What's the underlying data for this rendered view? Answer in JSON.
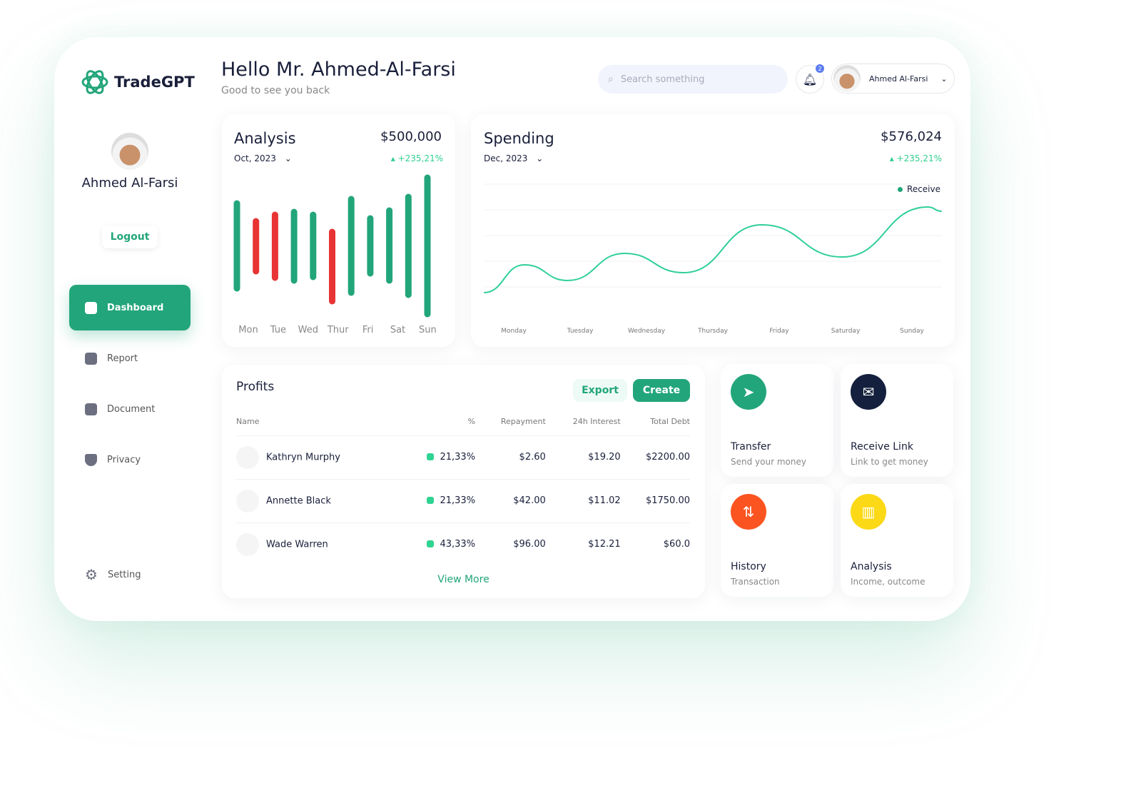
{
  "brand": {
    "name": "TradeGPT"
  },
  "header": {
    "greeting": "Hello Mr. Ahmed-Al-Farsi",
    "subtitle": "Good to see you back",
    "search_placeholder": "Search something",
    "notification_count": "2",
    "user_name": "Ahmed Al-Farsi"
  },
  "sidebar": {
    "profile_name": "Ahmed Al-Farsi",
    "logout": "Logout",
    "items": [
      {
        "label": "Dashboard",
        "icon": "grid-icon",
        "active": true
      },
      {
        "label": "Report",
        "icon": "bar-chart-icon"
      },
      {
        "label": "Document",
        "icon": "document-icon"
      },
      {
        "label": "Privacy",
        "icon": "shield-icon"
      }
    ],
    "setting": "Setting"
  },
  "analysis": {
    "title": "Analysis",
    "period": "Oct, 2023",
    "amount": "$500,000",
    "change": "+235,21%"
  },
  "spending": {
    "title": "Spending",
    "period": "Dec, 2023",
    "amount": "$576,024",
    "change": "+235,21%",
    "legend": "Receive"
  },
  "chart_data": [
    {
      "type": "bar",
      "subtype": "floating-range",
      "categories": [
        "Mon",
        "Tue",
        "Wed",
        "Thur",
        "Fri",
        "Sat",
        "Sun"
      ],
      "bars": [
        {
          "low": 46,
          "high": 165,
          "color": "green"
        },
        {
          "low": 70,
          "high": 140,
          "color": "red"
        },
        {
          "low": 61,
          "high": 149,
          "color": "red"
        },
        {
          "low": 57,
          "high": 153,
          "color": "green"
        },
        {
          "low": 62,
          "high": 149,
          "color": "green"
        },
        {
          "low": 28,
          "high": 125,
          "color": "red"
        },
        {
          "low": 40,
          "high": 171,
          "color": "green"
        },
        {
          "low": 67,
          "high": 144,
          "color": "green"
        },
        {
          "low": 57,
          "high": 155,
          "color": "green"
        },
        {
          "low": 37,
          "high": 174,
          "color": "green"
        },
        {
          "low": 10,
          "high": 201,
          "color": "green"
        }
      ],
      "colors": {
        "green": "#22a57a",
        "red": "#e83434"
      }
    },
    {
      "type": "line",
      "categories": [
        "Monday",
        "Tuesday",
        "Wednesday",
        "Thursday",
        "Friday",
        "Saturday",
        "Sunday"
      ],
      "series": [
        {
          "name": "Receive",
          "color": "#2fcf9a",
          "x": [
            -0.45,
            0.16,
            0.81,
            1.67,
            2.56,
            3.74,
            4.95,
            6.24,
            6.45
          ],
          "y": [
            40,
            79,
            57,
            95,
            68,
            135,
            90,
            160,
            154
          ]
        }
      ],
      "legend": "top-right",
      "grid": true
    }
  ],
  "profits": {
    "title": "Profits",
    "export": "Export",
    "create": "Create",
    "columns": [
      "Name",
      "%",
      "Repayment",
      "24h Interest",
      "Total Debt"
    ],
    "rows": [
      [
        "Kathryn Murphy",
        "21,33%",
        "$2.60",
        "$19.20",
        "$2200.00"
      ],
      [
        "Annette Black",
        "21,33%",
        "$42.00",
        "$11.02",
        "$1750.00"
      ],
      [
        "Wade Warren",
        "43,33%",
        "$96.00",
        "$12.21",
        "$60.0"
      ]
    ],
    "view_more": "View More"
  },
  "tiles": [
    {
      "title": "Transfer",
      "subtitle": "Send your money",
      "color": "#22a57a",
      "icon": "send-icon"
    },
    {
      "title": "Receive Link",
      "subtitle": "Link to get money",
      "color": "#14203d",
      "icon": "mail-icon"
    },
    {
      "title": "History",
      "subtitle": "Transaction",
      "color": "#fb5420",
      "icon": "arrows-icon"
    },
    {
      "title": "Analysis",
      "subtitle": "Income, outcome",
      "color": "#fbd916",
      "icon": "chart-icon"
    }
  ]
}
